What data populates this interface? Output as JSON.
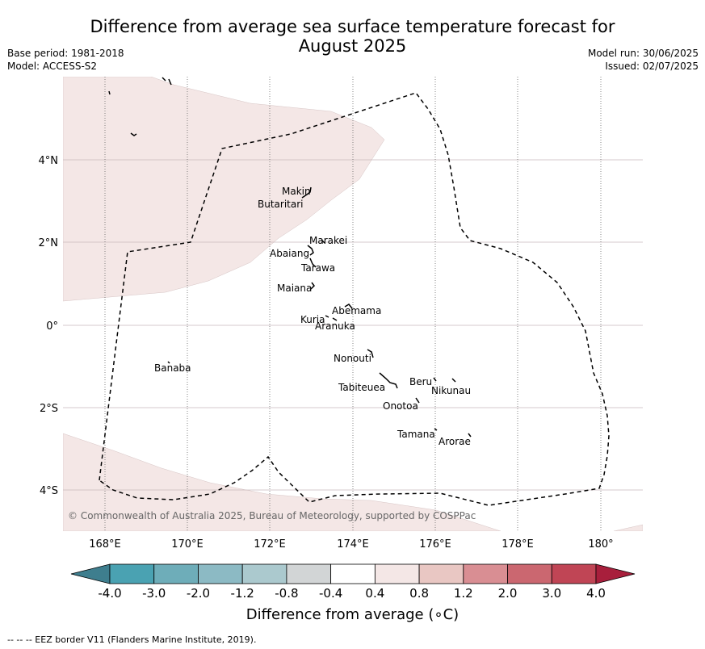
{
  "title_line1": "Difference from average sea surface temperature forecast for",
  "title_line2": "August 2025",
  "base_period": "Base period: 1981-2018",
  "model": "Model: ACCESS-S2",
  "model_run": "Model run: 30/06/2025",
  "issued": "Issued: 02/07/2025",
  "copyright": "© Commonwealth of Australia 2025, Bureau of Meteorology, supported by COSPPac",
  "x_ticks": [
    "168°E",
    "170°E",
    "172°E",
    "174°E",
    "176°E",
    "178°E",
    "180°"
  ],
  "y_ticks": [
    "4°N",
    "2°N",
    "0°",
    "2°S",
    "4°S"
  ],
  "islands": [
    {
      "name": "Makin"
    },
    {
      "name": "Butaritari"
    },
    {
      "name": "Marakei"
    },
    {
      "name": "Abaiang"
    },
    {
      "name": "Tarawa"
    },
    {
      "name": "Maiana"
    },
    {
      "name": "Abemama"
    },
    {
      "name": "Kuria"
    },
    {
      "name": "Aranuka"
    },
    {
      "name": "Nonouti"
    },
    {
      "name": "Banaba"
    },
    {
      "name": "Beru"
    },
    {
      "name": "Nikunau"
    },
    {
      "name": "Tabiteuea"
    },
    {
      "name": "Onotoa"
    },
    {
      "name": "Tamana"
    },
    {
      "name": "Arorae"
    }
  ],
  "colorbar": {
    "ticks": [
      "-4.0",
      "-3.0",
      "-2.0",
      "-1.2",
      "-0.8",
      "-0.4",
      "0.4",
      "0.8",
      "1.2",
      "2.0",
      "3.0",
      "4.0"
    ],
    "colors": [
      "#3e7e8e",
      "#4aa2b2",
      "#6eadb9",
      "#8cbac4",
      "#abc9ce",
      "#d2d5d6",
      "#ffffff",
      "#f4e7e6",
      "#e9c7c3",
      "#d98e93",
      "#cb6770",
      "#c04555",
      "#a81f3c"
    ],
    "label": "Difference from average (∘C)"
  },
  "footer": "--  --  -- EEZ border V11 (Flanders Marine Institute, 2019).",
  "legend_colors": {
    "anomaly_04_08": "#f4e7e6",
    "grid": "#c8b8bb",
    "eez": "#000000"
  }
}
